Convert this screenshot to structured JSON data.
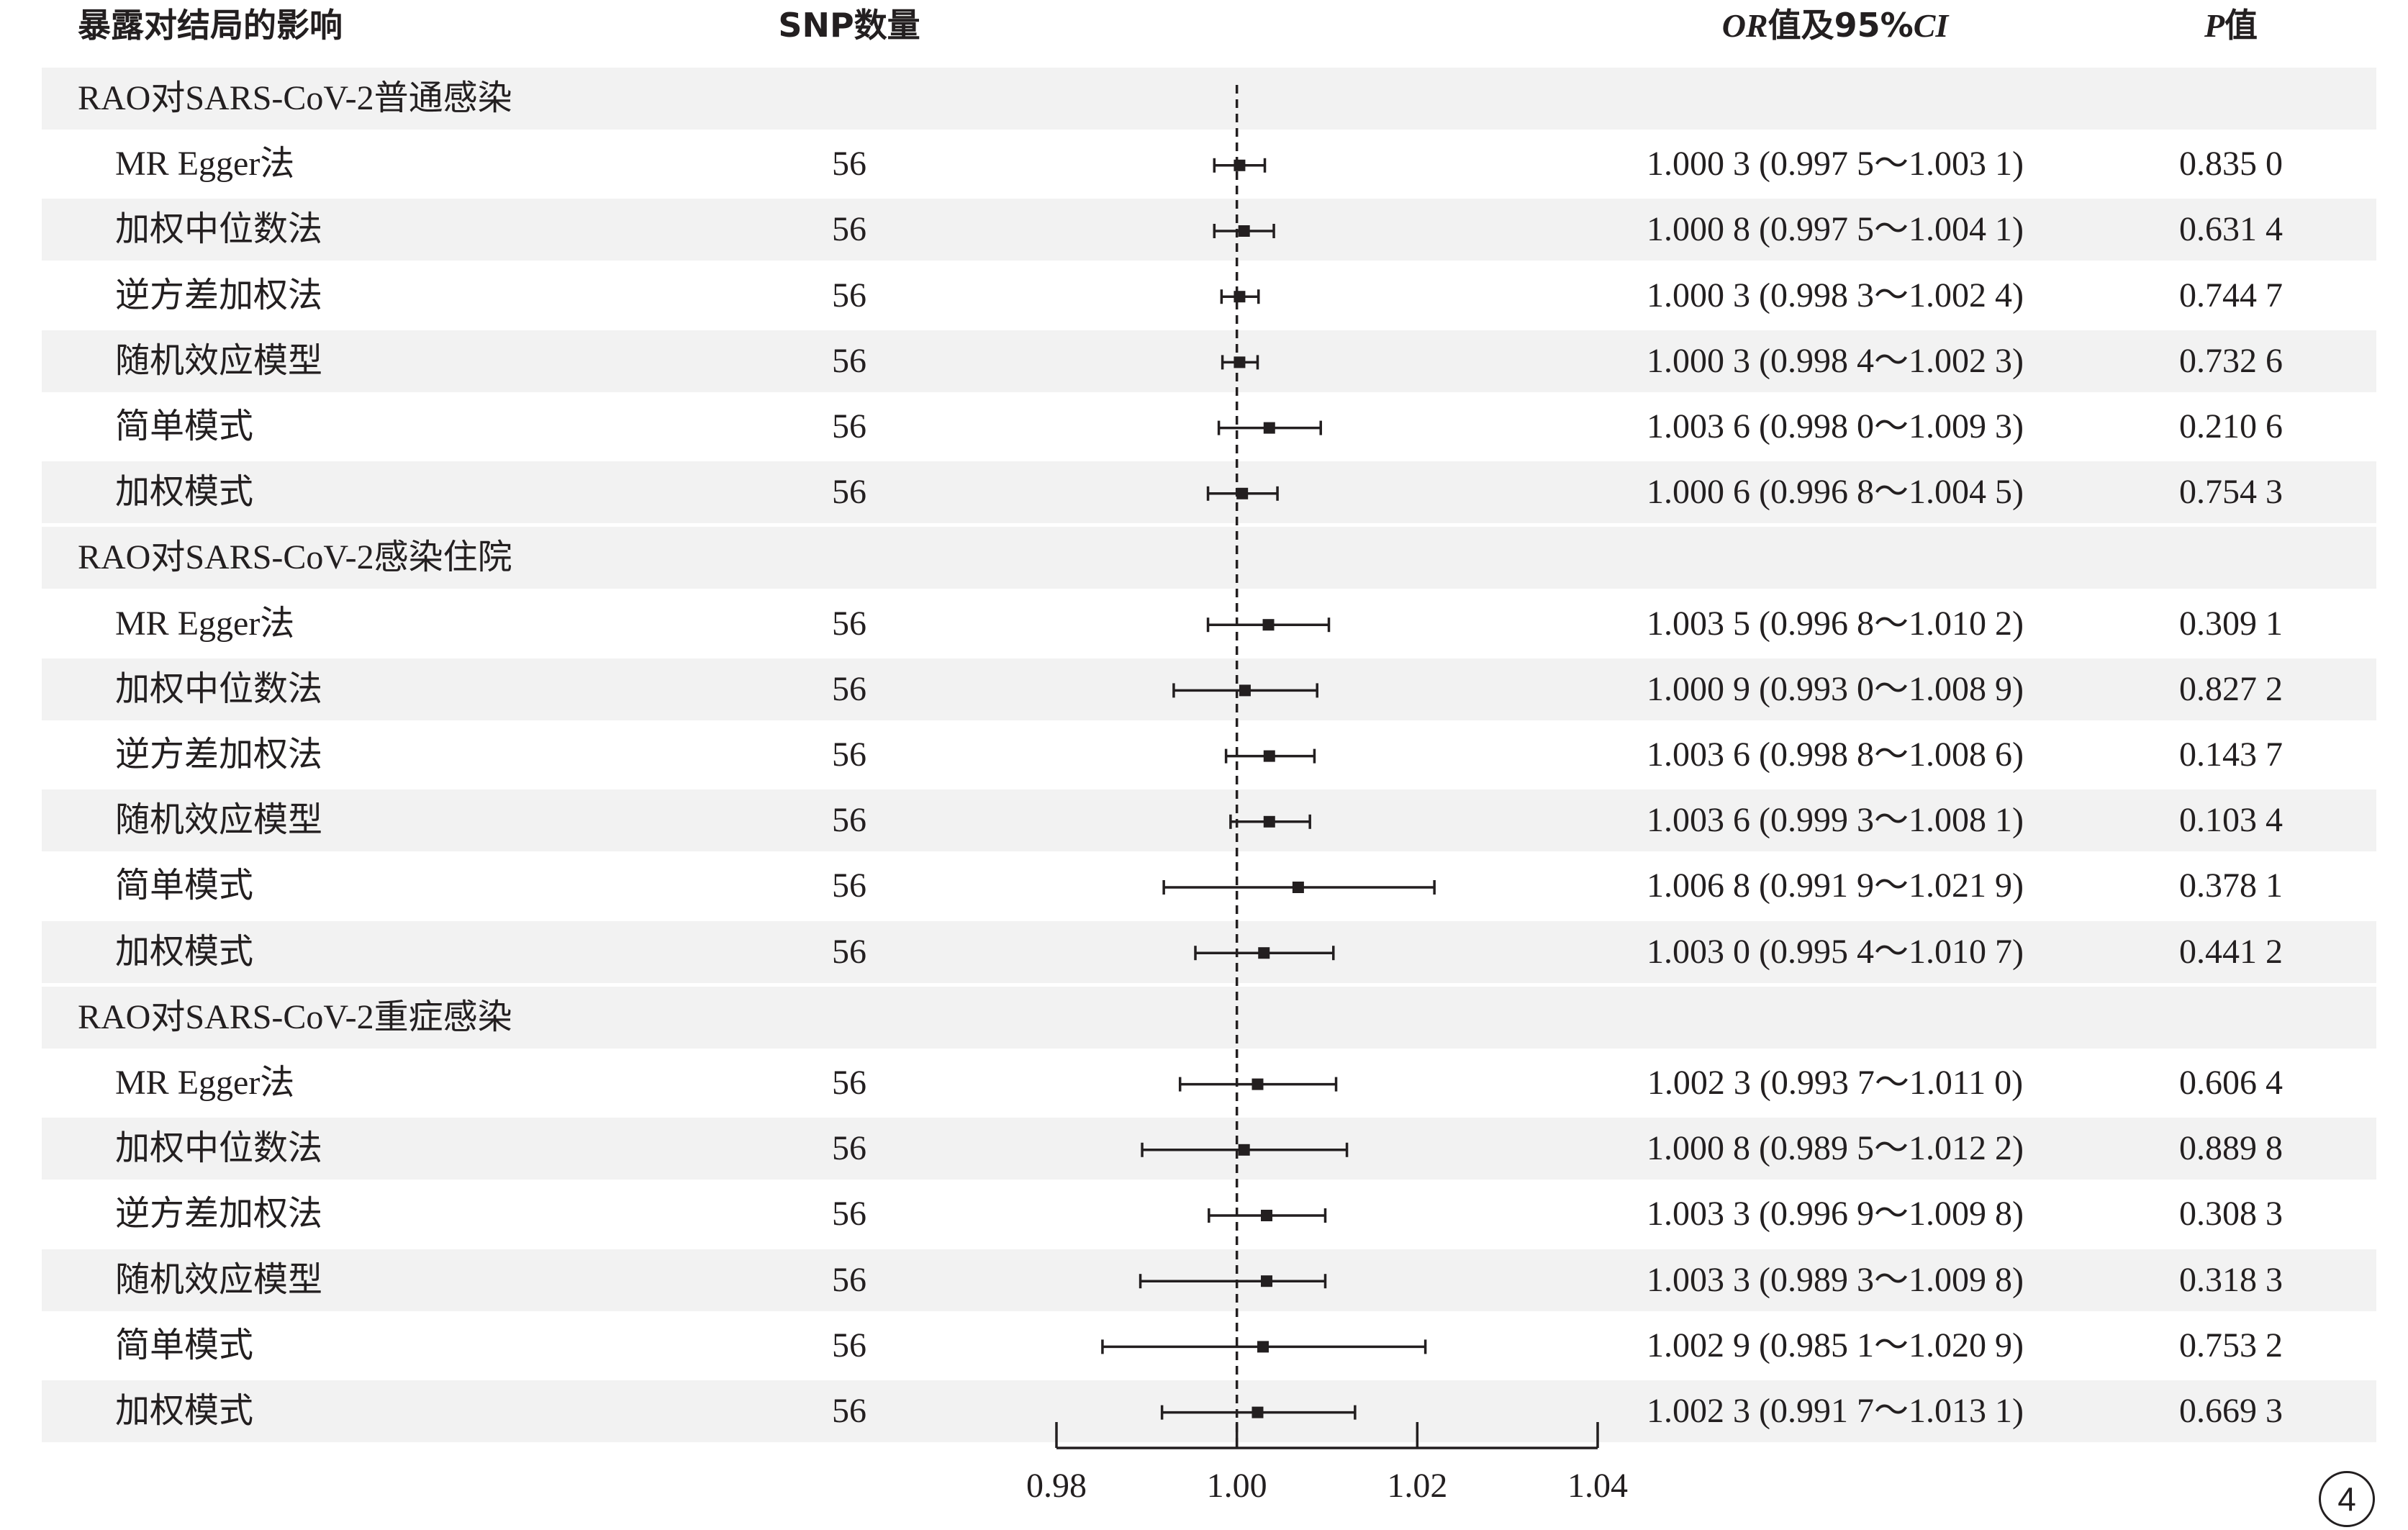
{
  "headers": {
    "exposure": "暴露对结局的影响",
    "snp": "SNP数量",
    "or_italic": "OR",
    "or_rest": "值及95%",
    "ci_italic": "CI",
    "p_italic": "P",
    "p_rest": "值"
  },
  "page_number": "4",
  "chart_data": {
    "type": "forest",
    "reference_line": 1.0,
    "xlim": [
      0.98,
      1.04
    ],
    "x_ticks": [
      "0.98",
      "1.00",
      "1.02",
      "1.04"
    ],
    "groups": [
      {
        "label": "RAO对SARS-CoV-2普通感染",
        "rows": [
          {
            "method": "MR Egger法",
            "snp": "56",
            "or": 1.0003,
            "lo": 0.9975,
            "hi": 1.0031,
            "ci_text": "1.000 3 (0.997 5～1.003 1)",
            "p": "0.835 0"
          },
          {
            "method": "加权中位数法",
            "snp": "56",
            "or": 1.0008,
            "lo": 0.9975,
            "hi": 1.0041,
            "ci_text": "1.000 8 (0.997 5～1.004 1)",
            "p": "0.631 4"
          },
          {
            "method": "逆方差加权法",
            "snp": "56",
            "or": 1.0003,
            "lo": 0.9983,
            "hi": 1.0024,
            "ci_text": "1.000 3 (0.998 3～1.002 4)",
            "p": "0.744 7"
          },
          {
            "method": "随机效应模型",
            "snp": "56",
            "or": 1.0003,
            "lo": 0.9984,
            "hi": 1.0023,
            "ci_text": "1.000 3 (0.998 4～1.002 3)",
            "p": "0.732 6"
          },
          {
            "method": "简单模式",
            "snp": "56",
            "or": 1.0036,
            "lo": 0.998,
            "hi": 1.0093,
            "ci_text": "1.003 6 (0.998 0～1.009 3)",
            "p": "0.210 6"
          },
          {
            "method": "加权模式",
            "snp": "56",
            "or": 1.0006,
            "lo": 0.9968,
            "hi": 1.0045,
            "ci_text": "1.000 6 (0.996 8～1.004 5)",
            "p": "0.754 3"
          }
        ]
      },
      {
        "label": "RAO对SARS-CoV-2感染住院",
        "rows": [
          {
            "method": "MR Egger法",
            "snp": "56",
            "or": 1.0035,
            "lo": 0.9968,
            "hi": 1.0102,
            "ci_text": "1.003 5 (0.996 8～1.010 2)",
            "p": "0.309 1"
          },
          {
            "method": "加权中位数法",
            "snp": "56",
            "or": 1.0009,
            "lo": 0.993,
            "hi": 1.0089,
            "ci_text": "1.000 9 (0.993 0～1.008 9)",
            "p": "0.827 2"
          },
          {
            "method": "逆方差加权法",
            "snp": "56",
            "or": 1.0036,
            "lo": 0.9988,
            "hi": 1.0086,
            "ci_text": "1.003 6 (0.998 8～1.008 6)",
            "p": "0.143 7"
          },
          {
            "method": "随机效应模型",
            "snp": "56",
            "or": 1.0036,
            "lo": 0.9993,
            "hi": 1.0081,
            "ci_text": "1.003 6 (0.999 3～1.008 1)",
            "p": "0.103 4"
          },
          {
            "method": "简单模式",
            "snp": "56",
            "or": 1.0068,
            "lo": 0.9919,
            "hi": 1.0219,
            "ci_text": "1.006 8 (0.991 9～1.021 9)",
            "p": "0.378 1"
          },
          {
            "method": "加权模式",
            "snp": "56",
            "or": 1.003,
            "lo": 0.9954,
            "hi": 1.0107,
            "ci_text": "1.003 0 (0.995 4～1.010 7)",
            "p": "0.441 2"
          }
        ]
      },
      {
        "label": "RAO对SARS-CoV-2重症感染",
        "rows": [
          {
            "method": "MR Egger法",
            "snp": "56",
            "or": 1.0023,
            "lo": 0.9937,
            "hi": 1.011,
            "ci_text": "1.002 3 (0.993 7～1.011 0)",
            "p": "0.606 4"
          },
          {
            "method": "加权中位数法",
            "snp": "56",
            "or": 1.0008,
            "lo": 0.9895,
            "hi": 1.0122,
            "ci_text": "1.000 8 (0.989 5～1.012 2)",
            "p": "0.889 8"
          },
          {
            "method": "逆方差加权法",
            "snp": "56",
            "or": 1.0033,
            "lo": 0.9969,
            "hi": 1.0098,
            "ci_text": "1.003 3 (0.996 9～1.009 8)",
            "p": "0.308 3"
          },
          {
            "method": "随机效应模型",
            "snp": "56",
            "or": 1.0033,
            "lo": 0.9893,
            "hi": 1.0098,
            "ci_text": "1.003 3 (0.989 3～1.009 8)",
            "p": "0.318 3"
          },
          {
            "method": "简单模式",
            "snp": "56",
            "or": 1.0029,
            "lo": 0.9851,
            "hi": 1.0209,
            "ci_text": "1.002 9 (0.985 1～1.020 9)",
            "p": "0.753 2"
          },
          {
            "method": "加权模式",
            "snp": "56",
            "or": 1.0023,
            "lo": 0.9917,
            "hi": 1.0131,
            "ci_text": "1.002 3 (0.991 7～1.013 1)",
            "p": "0.669 3"
          }
        ]
      }
    ]
  }
}
